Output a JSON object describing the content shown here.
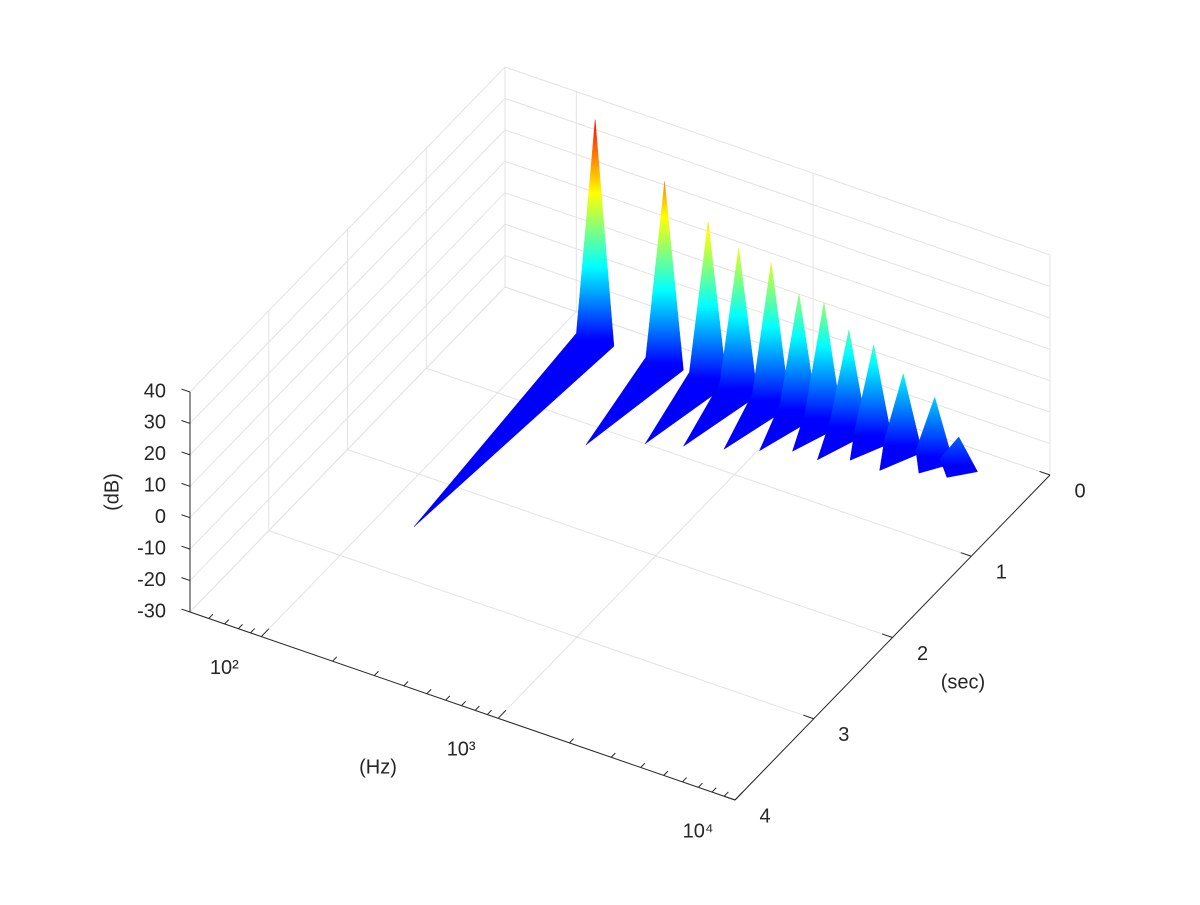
{
  "chart_data": {
    "type": "surface",
    "xlabel": "(Hz)",
    "ylabel": "(sec)",
    "zlabel": "(dB)",
    "xscale": "log",
    "xlim": [
      50,
      10000
    ],
    "xticks": [
      {
        "value": 100,
        "label": "10²"
      },
      {
        "value": 1000,
        "label": "10³"
      },
      {
        "value": 10000,
        "label": "10⁴"
      }
    ],
    "xminorticks": [
      60,
      70,
      80,
      90,
      200,
      300,
      400,
      500,
      600,
      700,
      800,
      900,
      2000,
      3000,
      4000,
      5000,
      6000,
      7000,
      8000,
      9000
    ],
    "ylim": [
      0,
      4
    ],
    "yticks": [
      0,
      1,
      2,
      3,
      4
    ],
    "zlim": [
      -30,
      40
    ],
    "zticks": [
      -30,
      -20,
      -10,
      0,
      10,
      20,
      30,
      40
    ],
    "grid": true,
    "colormap": [
      "#0000ff",
      "#0080ff",
      "#00ffff",
      "#80ff80",
      "#ffff00",
      "#ff8000",
      "#ff0000"
    ],
    "ridges": [
      {
        "x": 140,
        "y": [
          0.2,
          2.5
        ],
        "z": [
          40,
          -30
        ]
      },
      {
        "x": 275,
        "y": [
          0.2,
          1.2
        ],
        "z": [
          28,
          -30
        ]
      },
      {
        "x": 420,
        "y": [
          0.2,
          1.0
        ],
        "z": [
          20,
          -30
        ]
      },
      {
        "x": 565,
        "y": [
          0.2,
          0.9
        ],
        "z": [
          15,
          -30
        ]
      },
      {
        "x": 775,
        "y": [
          0.2,
          0.8
        ],
        "z": [
          14,
          -30
        ]
      },
      {
        "x": 1015,
        "y": [
          0.2,
          0.7
        ],
        "z": [
          7,
          -30
        ]
      },
      {
        "x": 1295,
        "y": [
          0.2,
          0.6
        ],
        "z": [
          7,
          -30
        ]
      },
      {
        "x": 1650,
        "y": [
          0.2,
          0.6
        ],
        "z": [
          1,
          -30
        ]
      },
      {
        "x": 2100,
        "y": [
          0.2,
          0.5
        ],
        "z": [
          -1,
          -30
        ]
      },
      {
        "x": 2800,
        "y": [
          0.2,
          0.5
        ],
        "z": [
          -7,
          -30
        ]
      },
      {
        "x": 3800,
        "y": [
          0.2,
          0.4
        ],
        "z": [
          -11,
          -30
        ]
      },
      {
        "x": 4800,
        "y": [
          0.2,
          0.35
        ],
        "z": [
          -21,
          -30
        ]
      }
    ]
  }
}
